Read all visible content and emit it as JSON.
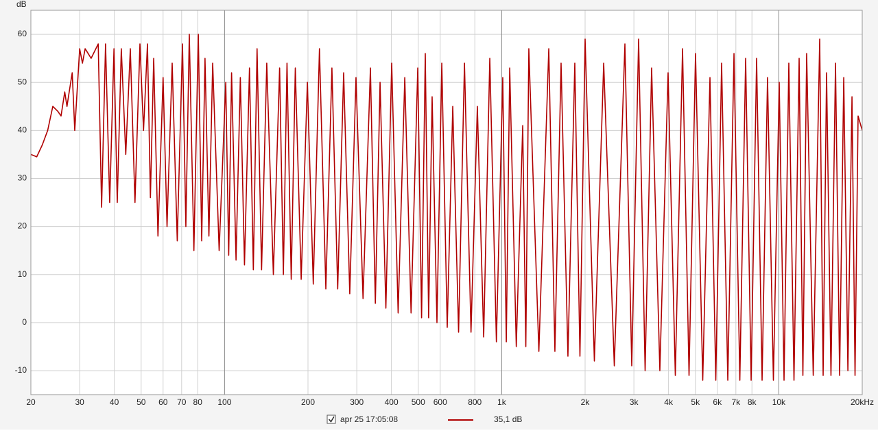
{
  "chart_data": {
    "type": "line",
    "y_label": "dB",
    "xscale": "log",
    "xlim": [
      20,
      20000
    ],
    "ylim": [
      -15,
      65
    ],
    "grid": true,
    "xticks": [
      20,
      30,
      40,
      50,
      60,
      70,
      80,
      100,
      200,
      300,
      400,
      500,
      600,
      800,
      {
        "value": 1000,
        "label": "1k"
      },
      {
        "value": 2000,
        "label": "2k"
      },
      {
        "value": 3000,
        "label": "3k"
      },
      {
        "value": 4000,
        "label": "4k"
      },
      {
        "value": 5000,
        "label": "5k"
      },
      {
        "value": 6000,
        "label": "6k"
      },
      {
        "value": 7000,
        "label": "7k"
      },
      {
        "value": 8000,
        "label": "8k"
      },
      {
        "value": 10000,
        "label": "10k"
      },
      {
        "value": 20000,
        "label": "20kHz"
      }
    ],
    "yticks": [
      -10,
      0,
      10,
      20,
      30,
      40,
      50,
      60
    ],
    "legend_value": "35,1 dB",
    "x": [
      20,
      21,
      22,
      23,
      24,
      25,
      25.7,
      26.5,
      27,
      27.5,
      28.2,
      28.8,
      30,
      30.7,
      31.4,
      33,
      35,
      36,
      37.2,
      38.5,
      39.9,
      41,
      42.4,
      44,
      45.7,
      47.5,
      49.5,
      51,
      52.7,
      54,
      55.5,
      57.5,
      60,
      62,
      64.7,
      67.5,
      70.5,
      72.5,
      74.6,
      77.5,
      80.4,
      82.7,
      85,
      87.8,
      90.6,
      95.6,
      101,
      103.5,
      106,
      110,
      114,
      118,
      123,
      127,
      131,
      136,
      142,
      150,
      158,
      163,
      168,
      174,
      180,
      189,
      199,
      209,
      220,
      232,
      244,
      256,
      269,
      283,
      298,
      316,
      336,
      350,
      364,
      382,
      401,
      423,
      447,
      471,
      498,
      514,
      530,
      545,
      561,
      584,
      608,
      636,
      666,
      699,
      734,
      775,
      817,
      861,
      906,
      957,
      1009,
      1039,
      1069,
      1129,
      1191,
      1222,
      1253,
      1362,
      1479,
      1556,
      1638,
      1734,
      1836,
      1916,
      2000,
      2160,
      2334,
      2549,
      2784,
      2947,
      3120,
      3293,
      3476,
      3722,
      3985,
      4232,
      4494,
      4743,
      5006,
      5315,
      5644,
      5924,
      6218,
      6546,
      6891,
      7234,
      7592,
      7946,
      8316,
      8703,
      9106,
      9561,
      10035,
      10444,
      10868,
      11345,
      11840,
      12216,
      12604,
      13312,
      14048,
      14453,
      14870,
      15425,
      16018,
      16578,
      17154,
      17755,
      18370,
      18840,
      19324,
      20000
    ],
    "series": [
      {
        "name": "apr 25 17:05:08",
        "color": "#b00000",
        "values": [
          35,
          34.5,
          37,
          40,
          45,
          44,
          43,
          48,
          45,
          48,
          52,
          40,
          57,
          54,
          57,
          55,
          58,
          24,
          58,
          25,
          57,
          25,
          57,
          35,
          57,
          25,
          58,
          40,
          58,
          26,
          55,
          18,
          51,
          20,
          54,
          17,
          58,
          20,
          60,
          15,
          60,
          17,
          55,
          18,
          54,
          15,
          50,
          14,
          52,
          13,
          51,
          12,
          53,
          11,
          57,
          11,
          54,
          10,
          53,
          10,
          54,
          9,
          53,
          9,
          50,
          8,
          57,
          7,
          53,
          7,
          52,
          6,
          51,
          5,
          53,
          4,
          50,
          3,
          54,
          2,
          51,
          2,
          53,
          1,
          56,
          1,
          47,
          0,
          54,
          -1,
          45,
          -2,
          54,
          -2,
          45,
          -3,
          55,
          -4,
          51,
          -4,
          53,
          -5,
          41,
          -5,
          57,
          -6,
          57,
          -6,
          54,
          -7,
          54,
          -7,
          59,
          -8,
          54,
          -9,
          58,
          -9,
          59,
          -10,
          53,
          -10,
          52,
          -11,
          57,
          -11,
          56,
          -12,
          51,
          -12,
          54,
          -12,
          56,
          -12,
          55,
          -12,
          55,
          -12,
          51,
          -12,
          50,
          -12,
          54,
          -12,
          55,
          -11,
          56,
          -11,
          59,
          -11,
          52,
          -11,
          54,
          -11,
          51,
          -10,
          47,
          -11,
          43,
          40
        ]
      }
    ]
  }
}
